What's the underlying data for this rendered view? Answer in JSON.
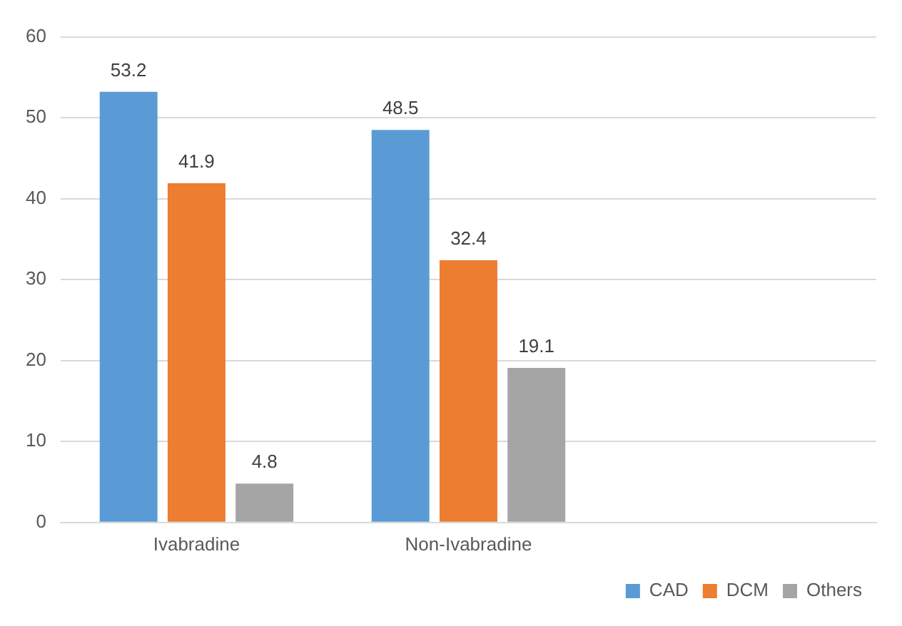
{
  "chart_data": {
    "type": "bar",
    "categories": [
      "Ivabradine",
      "Non-Ivabradine",
      null
    ],
    "series": [
      {
        "name": "CAD",
        "color": "#5b9bd5",
        "values": [
          53.2,
          48.5,
          null
        ]
      },
      {
        "name": "DCM",
        "color": "#ed7d31",
        "values": [
          41.9,
          32.4,
          null
        ]
      },
      {
        "name": "Others",
        "color": "#a5a5a5",
        "values": [
          4.8,
          19.1,
          null
        ]
      }
    ],
    "ylim": [
      0,
      60
    ],
    "yticks": [
      0,
      10,
      20,
      30,
      40,
      50,
      60
    ],
    "grid": "y",
    "legend": "bottom right",
    "data_labels": true
  }
}
